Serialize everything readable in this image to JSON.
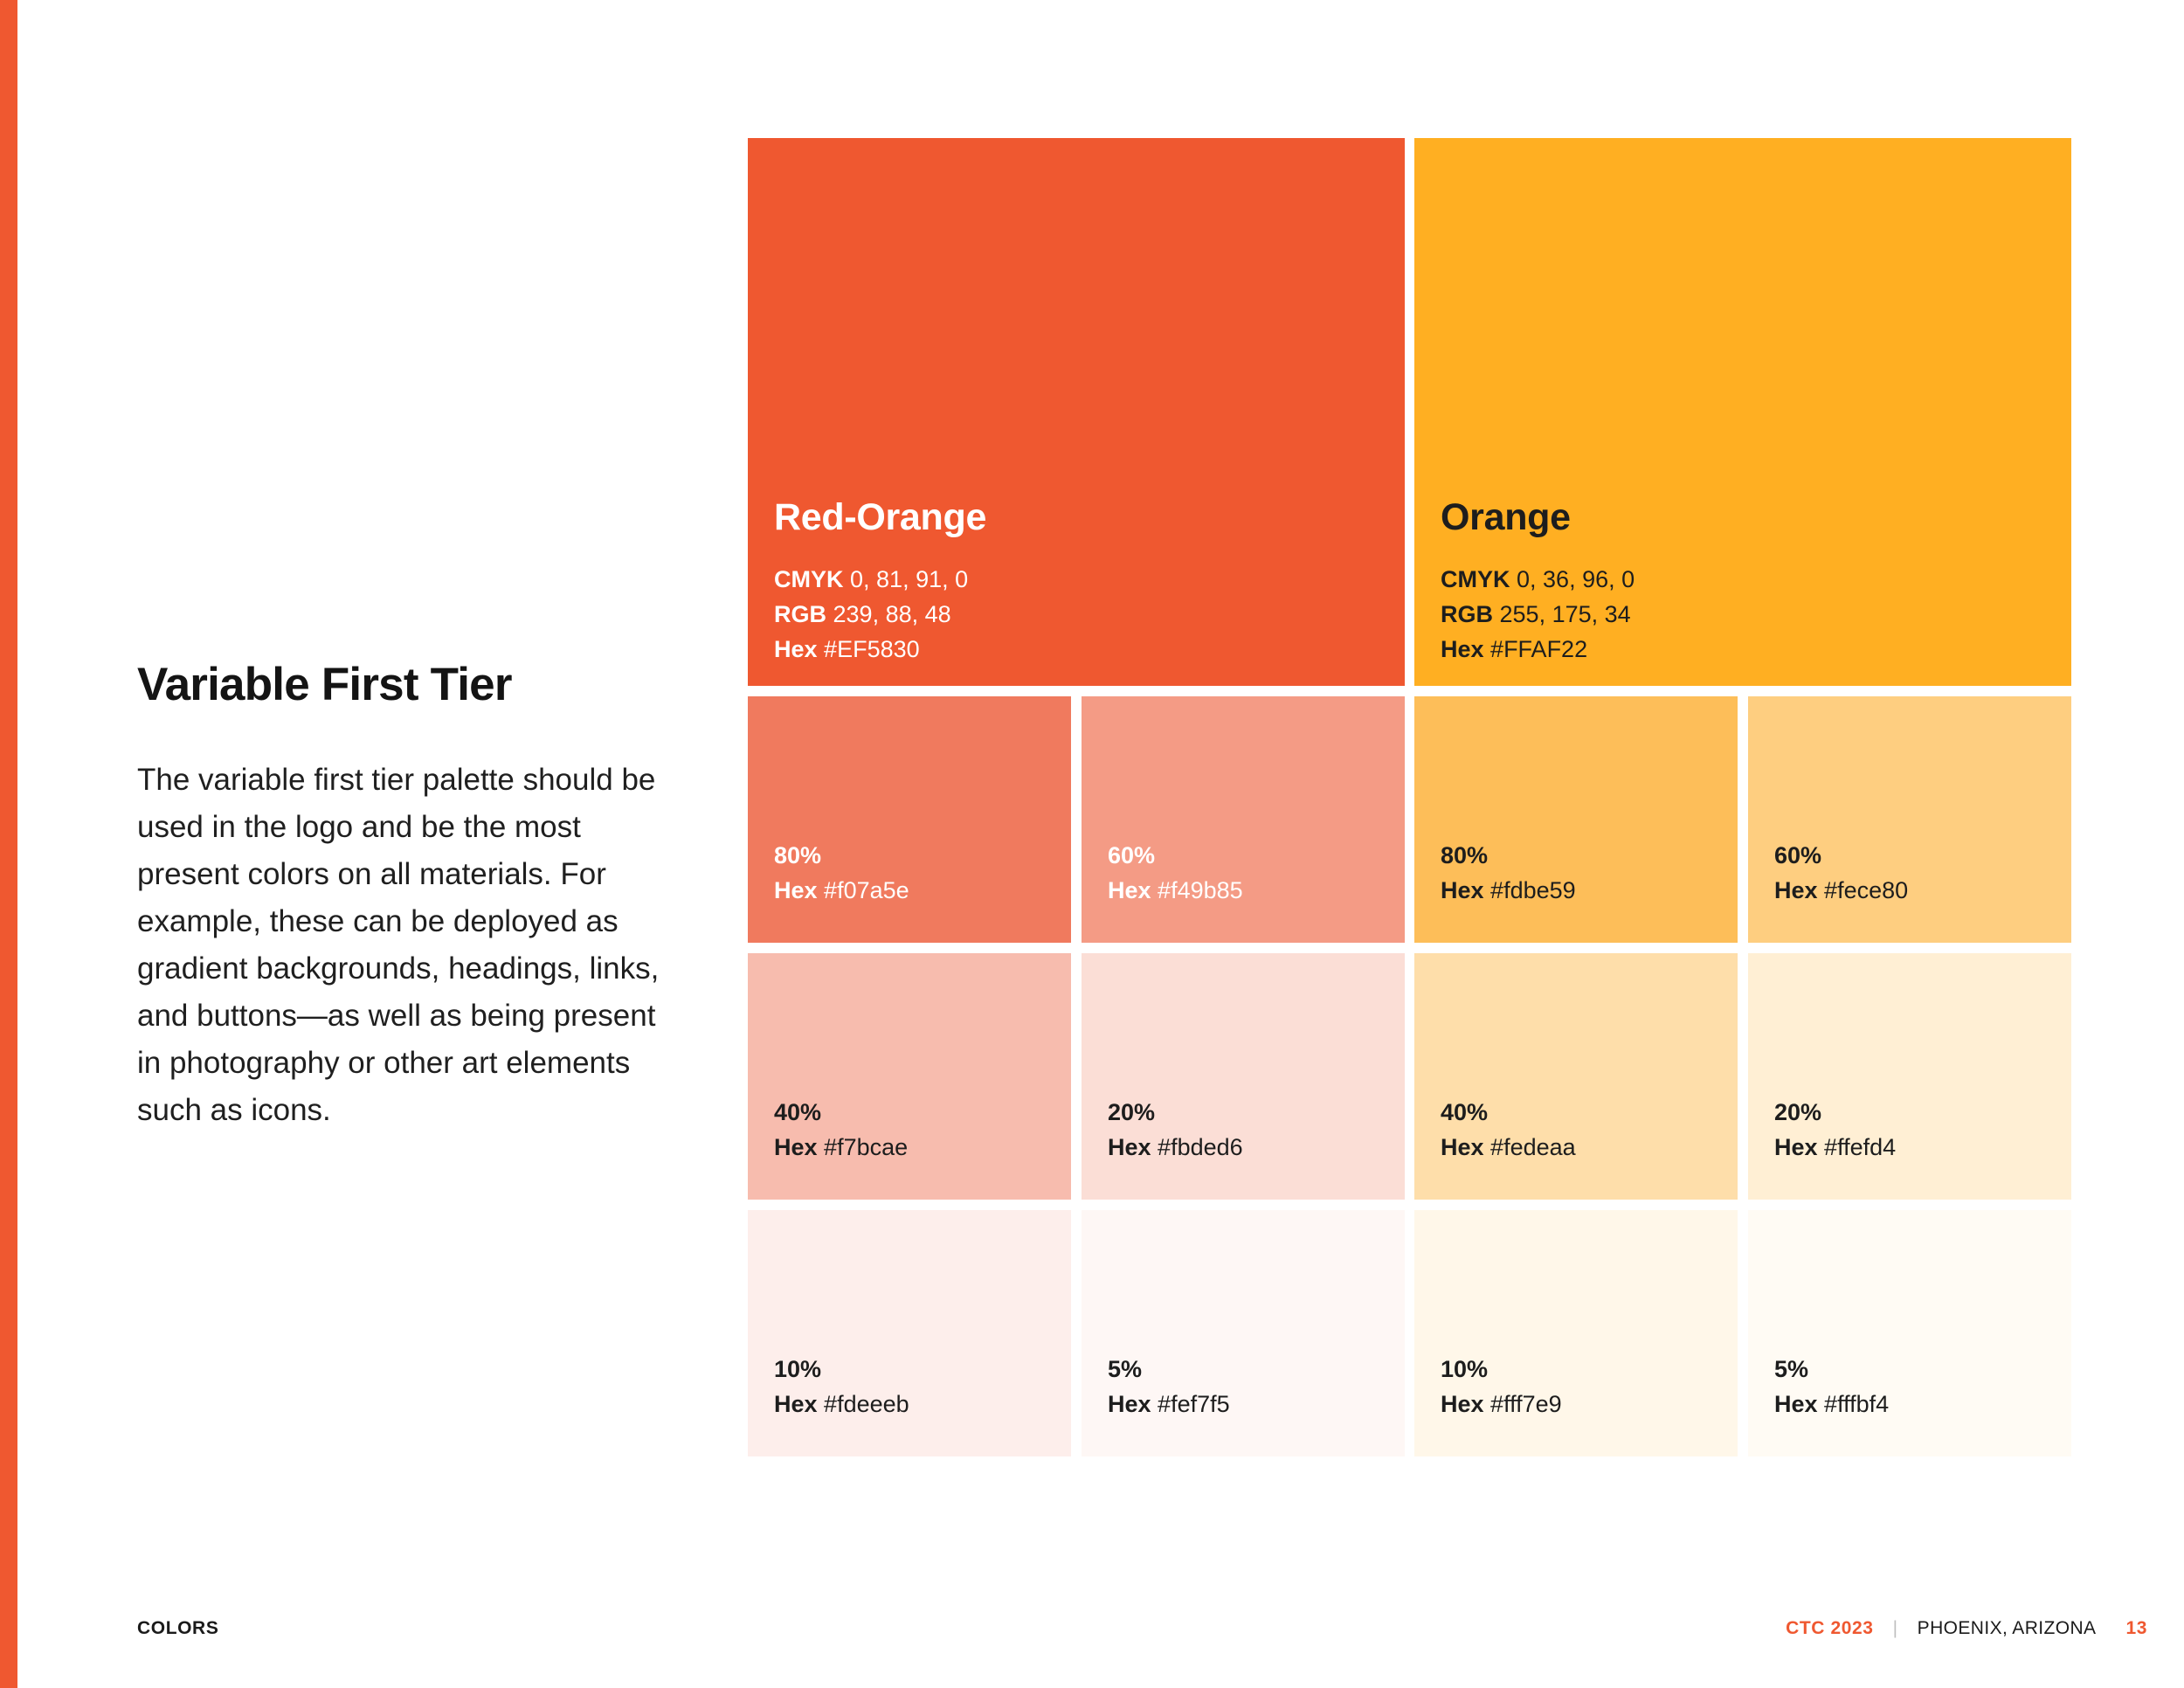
{
  "section": {
    "title": "Variable First Tier",
    "body": "The variable first tier palette should be used in the logo and be the most present colors on all materials. For example, these can be deployed as gradient backgrounds, headings, links, and buttons—as well as being present in photography or other art elements such as icons."
  },
  "primary": [
    {
      "name": "Red-Orange",
      "color": "#EF5830",
      "cmyk_label": "CMYK",
      "cmyk": "0, 81, 91, 0",
      "rgb_label": "RGB",
      "rgb": "239, 88, 48",
      "hex_label": "Hex",
      "hex": "#EF5830"
    },
    {
      "name": "Orange",
      "color": "#FFAF22",
      "cmyk_label": "CMYK",
      "cmyk": "0, 36, 96, 0",
      "rgb_label": "RGB",
      "rgb": "255, 175, 34",
      "hex_label": "Hex",
      "hex": "#FFAF22"
    }
  ],
  "tints": [
    {
      "percent": "80%",
      "hex_label": "Hex",
      "hex": "#f07a5e"
    },
    {
      "percent": "60%",
      "hex_label": "Hex",
      "hex": "#f49b85"
    },
    {
      "percent": "80%",
      "hex_label": "Hex",
      "hex": "#fdbe59"
    },
    {
      "percent": "60%",
      "hex_label": "Hex",
      "hex": "#fece80"
    },
    {
      "percent": "40%",
      "hex_label": "Hex",
      "hex": "#f7bcae"
    },
    {
      "percent": "20%",
      "hex_label": "Hex",
      "hex": "#fbded6"
    },
    {
      "percent": "40%",
      "hex_label": "Hex",
      "hex": "#fedeaa"
    },
    {
      "percent": "20%",
      "hex_label": "Hex",
      "hex": "#ffefd4"
    },
    {
      "percent": "10%",
      "hex_label": "Hex",
      "hex": "#fdeeeb"
    },
    {
      "percent": "5%",
      "hex_label": "Hex",
      "hex": "#fef7f5"
    },
    {
      "percent": "10%",
      "hex_label": "Hex",
      "hex": "#fff7e9"
    },
    {
      "percent": "5%",
      "hex_label": "Hex",
      "hex": "#fffbf4"
    }
  ],
  "footer": {
    "section": "COLORS",
    "event": "CTC 2023",
    "separator": "|",
    "location": "PHOENIX, ARIZONA",
    "page": "13"
  }
}
